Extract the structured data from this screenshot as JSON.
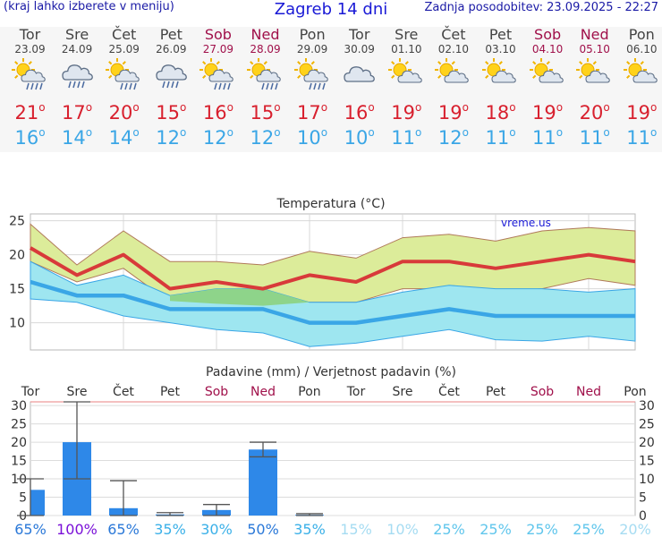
{
  "header": {
    "left_note": "(kraj lahko izberete v meniju)",
    "title": "Zagreb 14 dni",
    "updated": "Zadnja posodobitev: 23.09.2025 - 22:27"
  },
  "days": [
    {
      "name": "Tor",
      "date": "23.09",
      "weekend": false,
      "icon": "sun-cloud-rain-icon",
      "max": "21",
      "min": "16"
    },
    {
      "name": "Sre",
      "date": "24.09",
      "weekend": false,
      "icon": "cloud-rain-icon",
      "max": "17",
      "min": "14"
    },
    {
      "name": "Čet",
      "date": "25.09",
      "weekend": false,
      "icon": "sun-cloud-rain-icon",
      "max": "20",
      "min": "14"
    },
    {
      "name": "Pet",
      "date": "26.09",
      "weekend": false,
      "icon": "cloud-rain-icon",
      "max": "15",
      "min": "12"
    },
    {
      "name": "Sob",
      "date": "27.09",
      "weekend": true,
      "icon": "sun-cloud-rain-icon",
      "max": "16",
      "min": "12"
    },
    {
      "name": "Ned",
      "date": "28.09",
      "weekend": true,
      "icon": "sun-cloud-rain-icon",
      "max": "15",
      "min": "12"
    },
    {
      "name": "Pon",
      "date": "29.09",
      "weekend": false,
      "icon": "sun-cloud-rain-icon",
      "max": "17",
      "min": "10"
    },
    {
      "name": "Tor",
      "date": "30.09",
      "weekend": false,
      "icon": "cloud-icon",
      "max": "16",
      "min": "10"
    },
    {
      "name": "Sre",
      "date": "01.10",
      "weekend": false,
      "icon": "sun-cloud-icon",
      "max": "19",
      "min": "11"
    },
    {
      "name": "Čet",
      "date": "02.10",
      "weekend": false,
      "icon": "sun-cloud-icon",
      "max": "19",
      "min": "12"
    },
    {
      "name": "Pet",
      "date": "03.10",
      "weekend": false,
      "icon": "sun-cloud-icon",
      "max": "18",
      "min": "11"
    },
    {
      "name": "Sob",
      "date": "04.10",
      "weekend": true,
      "icon": "sun-cloud-icon",
      "max": "19",
      "min": "11"
    },
    {
      "name": "Ned",
      "date": "05.10",
      "weekend": true,
      "icon": "sun-cloud-icon",
      "max": "20",
      "min": "11"
    },
    {
      "name": "Pon",
      "date": "06.10",
      "weekend": false,
      "icon": "sun-cloud-icon",
      "max": "19",
      "min": "11"
    }
  ],
  "colors": {
    "max_line": "#d83a3a",
    "min_line": "#3aa6e6",
    "max_band": "#dcec9a",
    "min_band": "#9ee6f0",
    "overlap_band": "#8ed48a",
    "bar": "#2e88e8",
    "weekend": "#a0104a"
  },
  "chart_data": [
    {
      "type": "line",
      "title": "Temperatura (°C)",
      "watermark": "vreme.us",
      "categories": [
        "Tor",
        "Sre",
        "Čet",
        "Pet",
        "Sob",
        "Ned",
        "Pon",
        "Tor",
        "Sre",
        "Čet",
        "Pet",
        "Sob",
        "Ned",
        "Pon"
      ],
      "ylim": [
        6,
        26
      ],
      "yticks": [
        10,
        15,
        20,
        25
      ],
      "grid": true,
      "series": [
        {
          "name": "max",
          "values": [
            21,
            17,
            20,
            15,
            16,
            15,
            17,
            16,
            19,
            19,
            18,
            19,
            20,
            19
          ]
        },
        {
          "name": "min",
          "values": [
            16,
            14,
            14,
            12,
            12,
            12,
            10,
            10,
            11,
            12,
            11,
            11,
            11,
            11
          ]
        }
      ],
      "max_band": {
        "upper": [
          24.5,
          18.5,
          23.5,
          19,
          19,
          18.5,
          20.5,
          19.5,
          22.5,
          23,
          22,
          23.5,
          24,
          23.5
        ],
        "lower": [
          19,
          16,
          18,
          13,
          14.5,
          14,
          13,
          13,
          15,
          15,
          14.5,
          15,
          16.5,
          15.5
        ]
      },
      "min_band": {
        "upper": [
          19,
          15.5,
          17,
          14,
          15,
          15,
          13,
          13,
          14.5,
          15.5,
          15,
          15,
          14.5,
          15
        ],
        "lower": [
          13.5,
          13,
          11,
          10,
          9,
          8.5,
          6.5,
          7,
          8,
          9,
          7.5,
          7.3,
          8,
          7.3
        ]
      }
    },
    {
      "type": "bar",
      "title": "Padavine (mm) / Verjetnost padavin (%)",
      "categories": [
        "Tor",
        "Sre",
        "Čet",
        "Pet",
        "Sob",
        "Ned",
        "Pon",
        "Tor",
        "Sre",
        "Čet",
        "Pet",
        "Sob",
        "Ned",
        "Pon"
      ],
      "ylim": [
        0,
        31
      ],
      "yticks": [
        0,
        5,
        10,
        15,
        20,
        25,
        30
      ],
      "values": [
        7,
        20,
        2,
        0.3,
        1.5,
        18,
        0.2,
        0,
        0,
        0,
        0,
        0,
        0,
        0
      ],
      "error_low": [
        0,
        10,
        0,
        0,
        0,
        16,
        0,
        0,
        0,
        0,
        0,
        0,
        0,
        0
      ],
      "error_high": [
        10,
        31,
        9.5,
        0.8,
        3,
        20,
        0.5,
        0,
        0,
        0,
        0,
        0,
        0,
        0
      ],
      "probability": [
        "65%",
        "100%",
        "65%",
        "35%",
        "30%",
        "50%",
        "35%",
        "15%",
        "10%",
        "25%",
        "25%",
        "25%",
        "25%",
        "20%"
      ],
      "probability_colors": [
        "#2a78d8",
        "#7a10d8",
        "#2a78d8",
        "#3ab0e8",
        "#3ab0e8",
        "#2a78d8",
        "#3ab0e8",
        "#a6dcf2",
        "#a6dcf2",
        "#60c6ec",
        "#60c6ec",
        "#60c6ec",
        "#60c6ec",
        "#a6dcf2"
      ]
    }
  ]
}
